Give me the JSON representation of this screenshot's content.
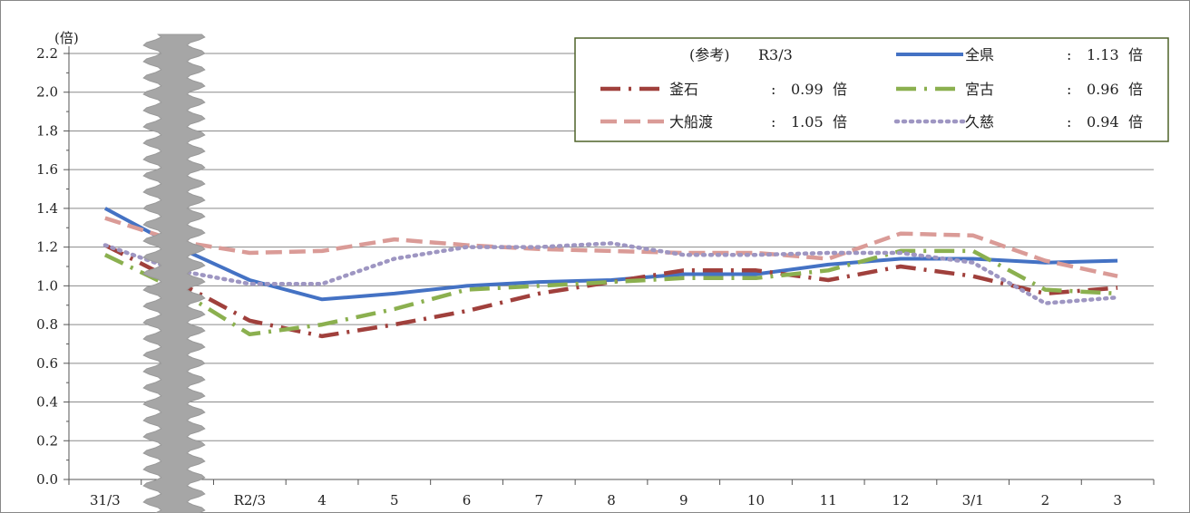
{
  "chart_data": {
    "type": "line",
    "unit_label": "(倍)",
    "ylim": [
      0,
      2.2
    ],
    "yticks": [
      "0.0",
      "0.2",
      "0.4",
      "0.6",
      "0.8",
      "1.0",
      "1.2",
      "1.4",
      "1.6",
      "1.8",
      "2.0",
      "2.2"
    ],
    "categories": [
      "31/3",
      "",
      "R2/3",
      "4",
      "5",
      "6",
      "7",
      "8",
      "9",
      "10",
      "11",
      "12",
      "3/1",
      "2",
      "3"
    ],
    "grid": true,
    "axis_break_after": "31/3",
    "legend_placement": "top-right",
    "legend": {
      "heading": "(参考)",
      "period": "R3/3",
      "colon": ":",
      "unit": "倍"
    },
    "series": [
      {
        "name": "全県",
        "ref_value": "1.13",
        "color": "#4472C4",
        "style": "solid",
        "values": [
          1.4,
          1.2,
          1.03,
          0.93,
          0.96,
          1.0,
          1.02,
          1.03,
          1.06,
          1.06,
          1.11,
          1.14,
          1.14,
          1.12,
          1.13
        ]
      },
      {
        "name": "釜石",
        "ref_value": "0.99",
        "color": "#A0403C",
        "style": "dash-dot",
        "values": [
          1.21,
          1.02,
          0.82,
          0.74,
          0.8,
          0.87,
          0.96,
          1.02,
          1.08,
          1.08,
          1.03,
          1.1,
          1.05,
          0.96,
          0.99
        ]
      },
      {
        "name": "宮古",
        "ref_value": "0.96",
        "color": "#8BB04F",
        "style": "dash-dot",
        "values": [
          1.16,
          0.98,
          0.75,
          0.8,
          0.88,
          0.98,
          1.0,
          1.02,
          1.04,
          1.04,
          1.08,
          1.18,
          1.18,
          0.98,
          0.96
        ]
      },
      {
        "name": "大船渡",
        "ref_value": "1.05",
        "color": "#DA9B97",
        "style": "dashed",
        "values": [
          1.35,
          1.23,
          1.17,
          1.18,
          1.24,
          1.21,
          1.19,
          1.18,
          1.17,
          1.17,
          1.14,
          1.27,
          1.26,
          1.13,
          1.05
        ]
      },
      {
        "name": "久慈",
        "ref_value": "0.94",
        "color": "#9E96C2",
        "style": "dotted",
        "values": [
          1.21,
          1.08,
          1.01,
          1.01,
          1.14,
          1.2,
          1.2,
          1.22,
          1.16,
          1.16,
          1.17,
          1.17,
          1.12,
          0.91,
          0.94
        ]
      }
    ]
  }
}
